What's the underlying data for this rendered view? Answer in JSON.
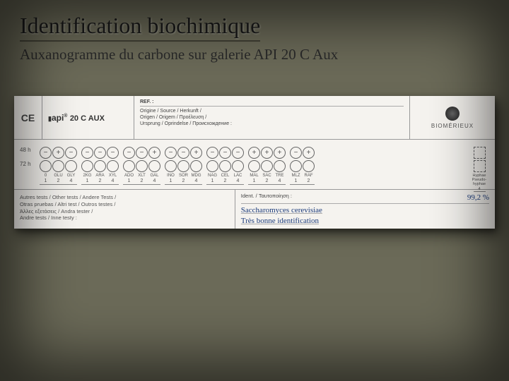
{
  "title": "Identification biochimique",
  "subtitle": "Auxanogramme du carbone sur galerie API 20 C Aux",
  "logo": {
    "brand": "api",
    "product": "20 C AUX",
    "reg": "®"
  },
  "ce": "CE",
  "ref": {
    "label": "REF. :",
    "lines": "Origine / Source / Herkunft /\nOrigen / Origem / Προέλευση /\nUrsprung / Oprindelse / Происхождение :"
  },
  "brand": {
    "name": "BIOMÉRIEUX"
  },
  "rowLabels": {
    "h48": "48 h",
    "h72": "72 h"
  },
  "groups": [
    {
      "subs": [
        "0",
        "GLU",
        "GLY"
      ],
      "nums": [
        "1",
        "2",
        "4"
      ],
      "signs": [
        "−",
        "+",
        "−"
      ]
    },
    {
      "subs": [
        "2KG",
        "ARA",
        "XYL"
      ],
      "nums": [
        "1",
        "2",
        "4"
      ],
      "signs": [
        "−",
        "−",
        "−"
      ]
    },
    {
      "subs": [
        "ADO",
        "XLT",
        "GAL"
      ],
      "nums": [
        "1",
        "2",
        "4"
      ],
      "signs": [
        "−",
        "−",
        "+"
      ]
    },
    {
      "subs": [
        "INO",
        "SOR",
        "MDG"
      ],
      "nums": [
        "1",
        "2",
        "4"
      ],
      "signs": [
        "−",
        "−",
        "+"
      ]
    },
    {
      "subs": [
        "NAG",
        "CEL",
        "LAC"
      ],
      "nums": [
        "1",
        "2",
        "4"
      ],
      "signs": [
        "−",
        "−",
        "−"
      ]
    },
    {
      "subs": [
        "MAL",
        "SAC",
        "TRE"
      ],
      "nums": [
        "1",
        "2",
        "4"
      ],
      "signs": [
        "+",
        "+",
        "+"
      ]
    },
    {
      "subs": [
        "MLZ",
        "RAF",
        ""
      ],
      "nums": [
        "1",
        "2",
        ""
      ],
      "signs": [
        "−",
        "+",
        ""
      ]
    }
  ],
  "hyphae": {
    "label": "Hyphae\nPseudo-\nhyphae",
    "num": "4"
  },
  "footer": {
    "left": "Autres tests / Other tests / Andere Tests /\nOtras pruebas / Altri test / Outros testes /\nΆλλες εξετάσεις / Andra tester /\nAndre tests / Inne testy :",
    "identLabel": "Ident. / Ταυτοποίηση :",
    "pct": "99,2 %",
    "hw1": "Saccharomyces cerevisiae",
    "hw2": "Très bonne identification"
  }
}
